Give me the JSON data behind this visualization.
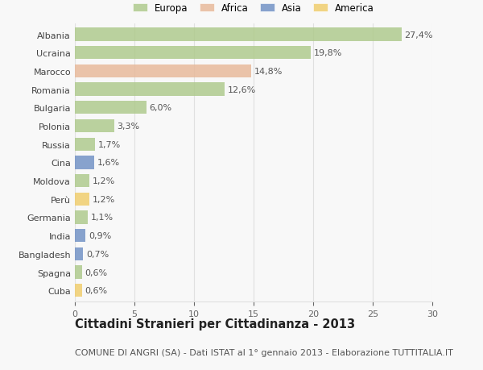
{
  "categories": [
    "Albania",
    "Ucraina",
    "Marocco",
    "Romania",
    "Bulgaria",
    "Polonia",
    "Russia",
    "Cina",
    "Moldova",
    "Perù",
    "Germania",
    "India",
    "Bangladesh",
    "Spagna",
    "Cuba"
  ],
  "values": [
    27.4,
    19.8,
    14.8,
    12.6,
    6.0,
    3.3,
    1.7,
    1.6,
    1.2,
    1.2,
    1.1,
    0.9,
    0.7,
    0.6,
    0.6
  ],
  "labels": [
    "27,4%",
    "19,8%",
    "14,8%",
    "12,6%",
    "6,0%",
    "3,3%",
    "1,7%",
    "1,6%",
    "1,2%",
    "1,2%",
    "1,1%",
    "0,9%",
    "0,7%",
    "0,6%",
    "0,6%"
  ],
  "continents": [
    "Europa",
    "Europa",
    "Africa",
    "Europa",
    "Europa",
    "Europa",
    "Europa",
    "Asia",
    "Europa",
    "America",
    "Europa",
    "Asia",
    "Asia",
    "Europa",
    "America"
  ],
  "continent_colors": {
    "Europa": "#adc98a",
    "Africa": "#e8b898",
    "Asia": "#6e8fc4",
    "America": "#f0cc6a"
  },
  "legend_order": [
    "Europa",
    "Africa",
    "Asia",
    "America"
  ],
  "title": "Cittadini Stranieri per Cittadinanza - 2013",
  "subtitle": "COMUNE DI ANGRI (SA) - Dati ISTAT al 1° gennaio 2013 - Elaborazione TUTTITALIA.IT",
  "xlim": [
    0,
    30
  ],
  "xticks": [
    0,
    5,
    10,
    15,
    20,
    25,
    30
  ],
  "background_color": "#f8f8f8",
  "grid_color": "#e0e0e0",
  "title_fontsize": 10.5,
  "subtitle_fontsize": 8,
  "label_fontsize": 8,
  "tick_fontsize": 8,
  "bar_height": 0.72,
  "alpha": 0.82
}
